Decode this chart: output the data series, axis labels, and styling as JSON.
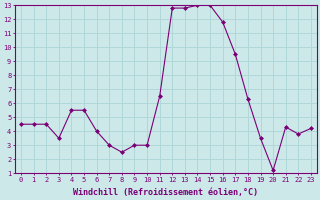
{
  "x": [
    0,
    1,
    2,
    3,
    4,
    5,
    6,
    7,
    8,
    9,
    10,
    11,
    12,
    13,
    14,
    15,
    16,
    17,
    18,
    19,
    20,
    21,
    22,
    23
  ],
  "y": [
    4.5,
    4.5,
    4.5,
    3.5,
    5.5,
    5.5,
    4.0,
    3.0,
    2.5,
    3.0,
    3.0,
    6.5,
    12.8,
    12.8,
    13.0,
    13.0,
    11.8,
    9.5,
    6.3,
    3.5,
    1.2,
    4.3,
    3.8,
    4.2
  ],
  "line_color": "#7B0077",
  "marker": "D",
  "marker_size": 2.0,
  "bg_color": "#cce8e8",
  "xlabel": "Windchill (Refroidissement éolien,°C)",
  "xlim": [
    -0.5,
    23.5
  ],
  "ylim": [
    1,
    13
  ],
  "yticks": [
    1,
    2,
    3,
    4,
    5,
    6,
    7,
    8,
    9,
    10,
    11,
    12,
    13
  ],
  "xticks": [
    0,
    1,
    2,
    3,
    4,
    5,
    6,
    7,
    8,
    9,
    10,
    11,
    12,
    13,
    14,
    15,
    16,
    17,
    18,
    19,
    20,
    21,
    22,
    23
  ],
  "grid_color": "#b0d8d8",
  "axis_color": "#7B0077",
  "label_color": "#7B0077",
  "tick_color": "#7B0077",
  "tick_fontsize": 5.0,
  "xlabel_fontsize": 6.0
}
